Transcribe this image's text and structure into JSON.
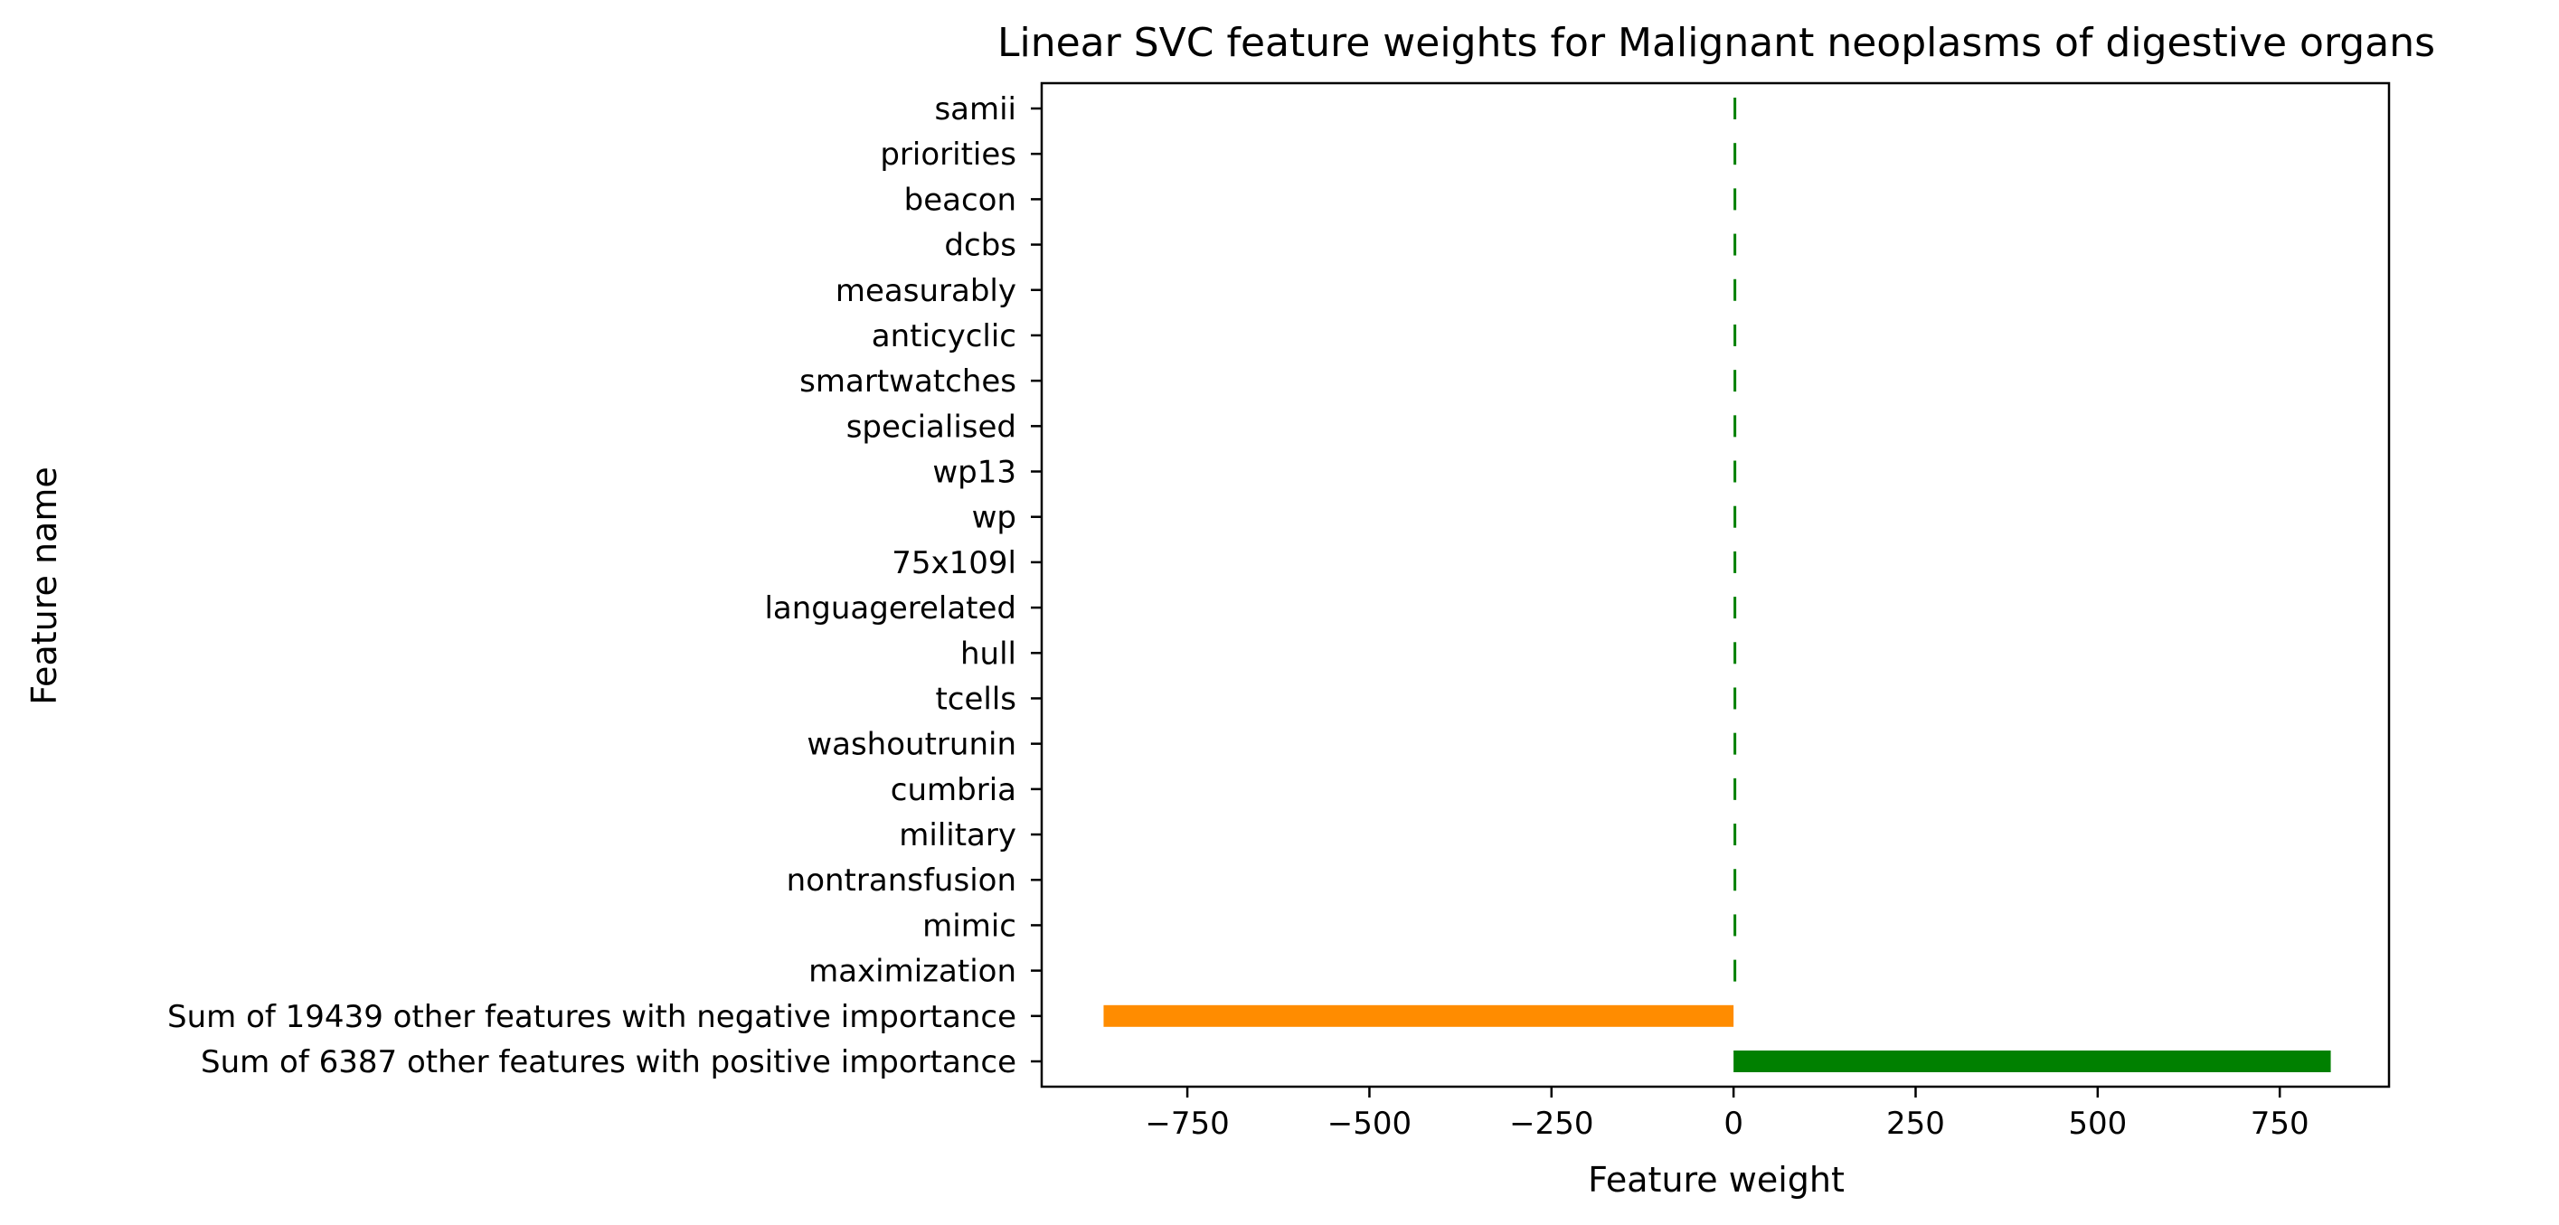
{
  "chart_data": {
    "type": "bar",
    "orientation": "horizontal",
    "title": "Linear SVC feature weights for Malignant neoplasms of digestive organs",
    "xlabel": "Feature weight",
    "ylabel": "Feature name",
    "xlim": [
      -950,
      900
    ],
    "xticks": [
      -750,
      -500,
      -250,
      0,
      250,
      500,
      750
    ],
    "xtick_labels": [
      "−750",
      "−500",
      "−250",
      "0",
      "250",
      "500",
      "750"
    ],
    "grid": false,
    "categories": [
      "samii",
      "priorities",
      "beacon",
      "dcbs",
      "measurably",
      "anticyclic",
      "smartwatches",
      "specialised",
      "wp13",
      "wp",
      "75x109l",
      "languagerelated",
      "hull",
      "tcells",
      "washoutrunin",
      "cumbria",
      "military",
      "nontransfusion",
      "mimic",
      "maximization",
      "Sum of 19439 other features with negative importance",
      "Sum of 6387 other features with positive importance"
    ],
    "values": [
      1.2,
      1.1,
      1.0,
      1.0,
      0.95,
      0.9,
      0.9,
      0.85,
      0.85,
      0.8,
      0.8,
      0.8,
      0.75,
      0.75,
      0.7,
      0.7,
      0.7,
      0.65,
      0.6,
      0.5,
      -865,
      820
    ],
    "colors": {
      "positive": "#008000",
      "negative": "#ff8c00"
    }
  }
}
